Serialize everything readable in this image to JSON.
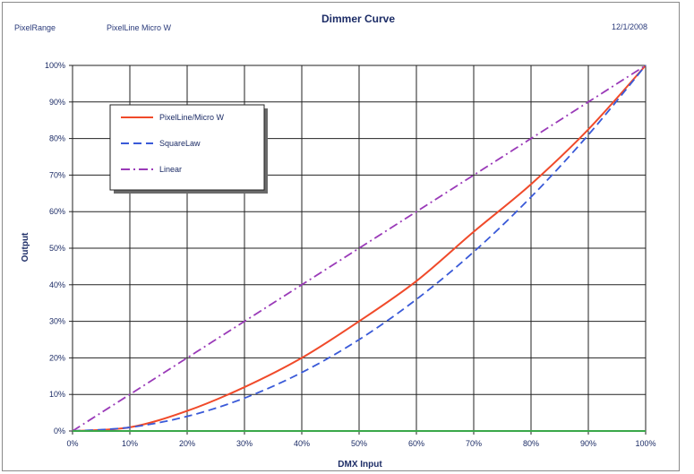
{
  "header": {
    "left_label": "PixelRange",
    "product_label": "PixelLine Micro W",
    "date": "12/1/2008"
  },
  "chart_data": {
    "type": "line",
    "title": "Dimmer Curve",
    "xlabel": "DMX Input",
    "ylabel": "Output",
    "xlim": [
      0,
      100
    ],
    "ylim": [
      0,
      100
    ],
    "x_ticks": [
      "0%",
      "10%",
      "20%",
      "30%",
      "40%",
      "50%",
      "60%",
      "70%",
      "80%",
      "90%",
      "100%"
    ],
    "y_ticks": [
      "0%",
      "10%",
      "20%",
      "30%",
      "40%",
      "50%",
      "60%",
      "70%",
      "80%",
      "90%",
      "100%"
    ],
    "grid": true,
    "legend_position": "top-left",
    "series": [
      {
        "name": "PixelLine/Micro W",
        "color": "#f04a2a",
        "dash": "solid",
        "x": [
          0,
          10,
          20,
          30,
          40,
          50,
          60,
          70,
          80,
          90,
          100
        ],
        "y": [
          0,
          1,
          5.5,
          12,
          20,
          30,
          41,
          54.5,
          67.5,
          82.5,
          100
        ]
      },
      {
        "name": "SquareLaw",
        "color": "#3a5ad8",
        "dash": "dashed",
        "x": [
          0,
          10,
          20,
          30,
          40,
          50,
          60,
          70,
          80,
          90,
          100
        ],
        "y": [
          0,
          1,
          4,
          9,
          16,
          25,
          36,
          49,
          64,
          81,
          100
        ]
      },
      {
        "name": "Linear",
        "color": "#9a3ab8",
        "dash": "dashdot",
        "x": [
          0,
          10,
          20,
          30,
          40,
          50,
          60,
          70,
          80,
          90,
          100
        ],
        "y": [
          0,
          10,
          20,
          30,
          40,
          50,
          60,
          70,
          80,
          90,
          100
        ]
      },
      {
        "color": "#3aa84a",
        "dash": "solid",
        "x": [
          0,
          100
        ],
        "y": [
          0,
          0
        ]
      }
    ]
  }
}
